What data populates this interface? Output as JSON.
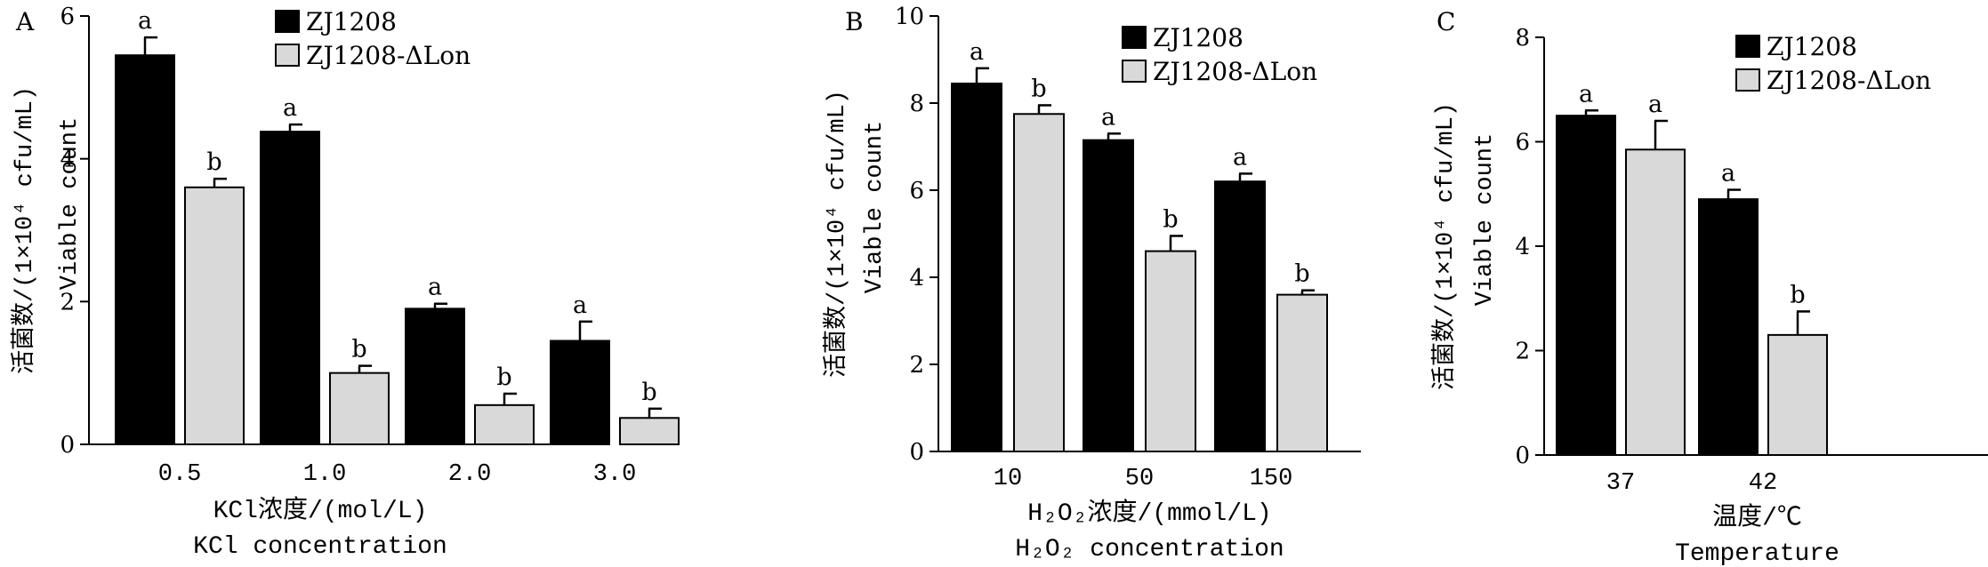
{
  "colors": {
    "series1": "#000000",
    "series2": "#d9d9d9",
    "outline": "#000000"
  },
  "chart_data": [
    {
      "type": "bar",
      "panel_label": "A",
      "categories": [
        "0.5",
        "1.0",
        "2.0",
        "3.0"
      ],
      "series": [
        {
          "name": "ZJ1208",
          "values": [
            5.45,
            4.38,
            1.9,
            1.45
          ],
          "errors": [
            0.25,
            0.1,
            0.07,
            0.27
          ],
          "sig": [
            "a",
            "a",
            "a",
            "a"
          ]
        },
        {
          "name": "ZJ1208-ΔLon",
          "values": [
            3.6,
            1.0,
            0.55,
            0.37
          ],
          "errors": [
            0.12,
            0.1,
            0.16,
            0.13
          ],
          "sig": [
            "b",
            "b",
            "b",
            "b"
          ]
        }
      ],
      "ylim": [
        0,
        6
      ],
      "yticks": [
        "0",
        "2",
        "4",
        "6"
      ],
      "ylabel_cn": "活菌数/(1×10⁴ cfu/mL)",
      "ylabel_en": "Viable count",
      "xlabel_cn": "KCl浓度/(mol/L)",
      "xlabel_en": "KCl concentration",
      "legend_position": "top-right",
      "grid": false
    },
    {
      "type": "bar",
      "panel_label": "B",
      "categories": [
        "10",
        "50",
        "150"
      ],
      "series": [
        {
          "name": "ZJ1208",
          "values": [
            8.45,
            7.15,
            6.2
          ],
          "errors": [
            0.35,
            0.15,
            0.18
          ],
          "sig": [
            "a",
            "a",
            "a"
          ]
        },
        {
          "name": "ZJ1208-ΔLon",
          "values": [
            7.75,
            4.6,
            3.6
          ],
          "errors": [
            0.2,
            0.35,
            0.1
          ],
          "sig": [
            "b",
            "b",
            "b"
          ]
        }
      ],
      "ylim": [
        0,
        10
      ],
      "yticks": [
        "0",
        "2",
        "4",
        "6",
        "8",
        "10"
      ],
      "ylabel_cn": "活菌数/(1×10⁴ cfu/mL)",
      "ylabel_en": "Viable count",
      "xlabel_cn": "H₂O₂浓度/(mmol/L)",
      "xlabel_en": "H₂O₂ concentration",
      "legend_position": "top-right",
      "grid": false
    },
    {
      "type": "bar",
      "panel_label": "C",
      "categories": [
        "37",
        "42"
      ],
      "series": [
        {
          "name": "ZJ1208",
          "values": [
            6.5,
            4.9
          ],
          "errors": [
            0.1,
            0.18
          ],
          "sig": [
            "a",
            "a"
          ]
        },
        {
          "name": "ZJ1208-ΔLon",
          "values": [
            5.85,
            2.3
          ],
          "errors": [
            0.55,
            0.45
          ],
          "sig": [
            "a",
            "b"
          ]
        }
      ],
      "ylim": [
        0,
        8
      ],
      "yticks": [
        "0",
        "2",
        "4",
        "6",
        "8"
      ],
      "ylabel_cn": "活菌数/(1×10⁴ cfu/mL)",
      "ylabel_en": "Viable count",
      "xlabel_cn": "温度/℃",
      "xlabel_en": "Temperature",
      "legend_position": "top-right",
      "grid": false
    }
  ]
}
